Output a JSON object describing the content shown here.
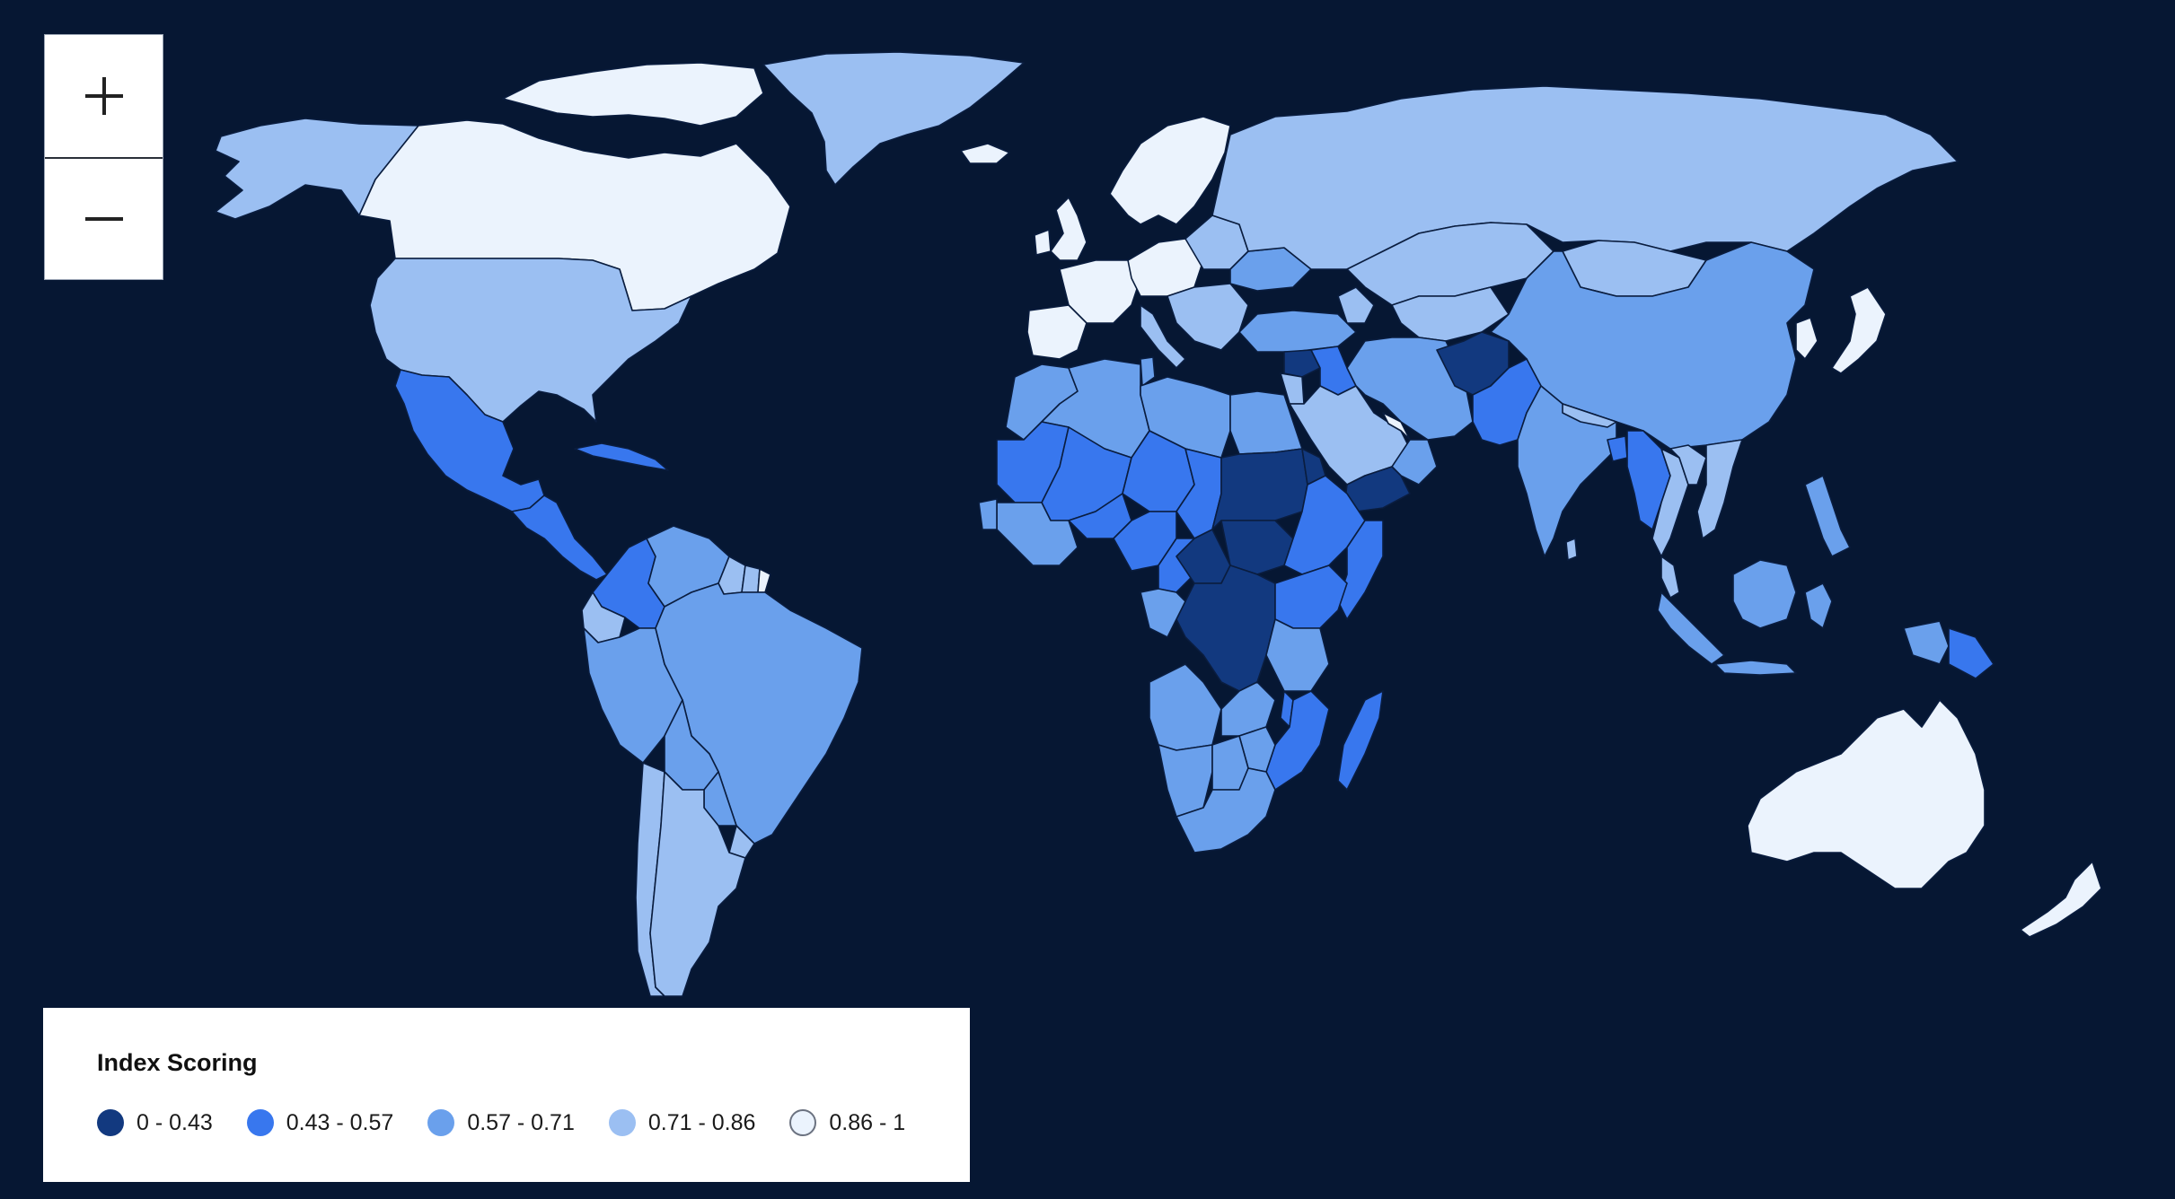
{
  "zoom": {
    "in_icon": "plus-icon",
    "out_icon": "minus-icon"
  },
  "legend": {
    "title": "Index Scoring",
    "items": [
      {
        "label": "0 - 0.43",
        "color": "#12397f"
      },
      {
        "label": "0.43 - 0.57",
        "color": "#3877ee"
      },
      {
        "label": "0.57 - 0.71",
        "color": "#6aa0ec"
      },
      {
        "label": "0.71 - 0.86",
        "color": "#9bbff2"
      },
      {
        "label": "0.86 - 1",
        "color": "#ebf3fd"
      }
    ]
  },
  "colors": {
    "ocean": "#061733",
    "border": "#0a1d3f"
  },
  "regions": [
    {
      "name": "Alaska",
      "tier": 3
    },
    {
      "name": "Canada",
      "tier": 4
    },
    {
      "name": "Greenland",
      "tier": 3
    },
    {
      "name": "Canadian Arctic islands",
      "tier": 4
    },
    {
      "name": "United States",
      "tier": 3
    },
    {
      "name": "Mexico",
      "tier": 1
    },
    {
      "name": "Central America",
      "tier": 1
    },
    {
      "name": "Cuba",
      "tier": 1
    },
    {
      "name": "Colombia",
      "tier": 1
    },
    {
      "name": "Venezuela",
      "tier": 2
    },
    {
      "name": "Guyana",
      "tier": 3
    },
    {
      "name": "Suriname",
      "tier": 3
    },
    {
      "name": "French Guiana",
      "tier": 4
    },
    {
      "name": "Ecuador",
      "tier": 3
    },
    {
      "name": "Peru",
      "tier": 2
    },
    {
      "name": "Brazil",
      "tier": 2
    },
    {
      "name": "Bolivia",
      "tier": 2
    },
    {
      "name": "Paraguay",
      "tier": 2
    },
    {
      "name": "Uruguay",
      "tier": 3
    },
    {
      "name": "Chile",
      "tier": 3
    },
    {
      "name": "Argentina",
      "tier": 3
    },
    {
      "name": "Iceland",
      "tier": 4
    },
    {
      "name": "United Kingdom",
      "tier": 4
    },
    {
      "name": "Ireland",
      "tier": 4
    },
    {
      "name": "Scandinavia",
      "tier": 4
    },
    {
      "name": "Western Europe",
      "tier": 4
    },
    {
      "name": "Iberia",
      "tier": 4
    },
    {
      "name": "Italy",
      "tier": 3
    },
    {
      "name": "Central Europe",
      "tier": 4
    },
    {
      "name": "Eastern Europe",
      "tier": 3
    },
    {
      "name": "Ukraine",
      "tier": 2
    },
    {
      "name": "Balkans",
      "tier": 3
    },
    {
      "name": "Russia",
      "tier": 3
    },
    {
      "name": "Turkey",
      "tier": 2
    },
    {
      "name": "Caucasus",
      "tier": 3
    },
    {
      "name": "Kazakhstan",
      "tier": 3
    },
    {
      "name": "Central Asia",
      "tier": 3
    },
    {
      "name": "Mongolia",
      "tier": 3
    },
    {
      "name": "China",
      "tier": 2
    },
    {
      "name": "Korea",
      "tier": 4
    },
    {
      "name": "Japan",
      "tier": 4
    },
    {
      "name": "Syria",
      "tier": 0
    },
    {
      "name": "Iraq",
      "tier": 1
    },
    {
      "name": "Israel & Jordan",
      "tier": 3
    },
    {
      "name": "Saudi Arabia",
      "tier": 3
    },
    {
      "name": "Gulf states",
      "tier": 4
    },
    {
      "name": "Oman",
      "tier": 2
    },
    {
      "name": "Yemen",
      "tier": 0
    },
    {
      "name": "Iran",
      "tier": 2
    },
    {
      "name": "Afghanistan",
      "tier": 0
    },
    {
      "name": "Pakistan",
      "tier": 1
    },
    {
      "name": "India",
      "tier": 2
    },
    {
      "name": "Sri Lanka",
      "tier": 3
    },
    {
      "name": "Nepal",
      "tier": 3
    },
    {
      "name": "Bangladesh",
      "tier": 1
    },
    {
      "name": "Myanmar",
      "tier": 1
    },
    {
      "name": "Thailand",
      "tier": 3
    },
    {
      "name": "Laos",
      "tier": 3
    },
    {
      "name": "Vietnam",
      "tier": 3
    },
    {
      "name": "Malaysia",
      "tier": 3
    },
    {
      "name": "Sumatra",
      "tier": 2
    },
    {
      "name": "Borneo",
      "tier": 2
    },
    {
      "name": "Java",
      "tier": 2
    },
    {
      "name": "Sulawesi",
      "tier": 2
    },
    {
      "name": "Philippines",
      "tier": 2
    },
    {
      "name": "New Guinea (Indonesia)",
      "tier": 2
    },
    {
      "name": "Papua New Guinea",
      "tier": 1
    },
    {
      "name": "Australia",
      "tier": 4
    },
    {
      "name": "New Zealand",
      "tier": 4
    },
    {
      "name": "Morocco",
      "tier": 2
    },
    {
      "name": "Algeria",
      "tier": 2
    },
    {
      "name": "Tunisia",
      "tier": 2
    },
    {
      "name": "Libya",
      "tier": 2
    },
    {
      "name": "Egypt",
      "tier": 2
    },
    {
      "name": "Mauritania",
      "tier": 1
    },
    {
      "name": "Mali",
      "tier": 1
    },
    {
      "name": "Niger",
      "tier": 1
    },
    {
      "name": "Chad",
      "tier": 1
    },
    {
      "name": "Sudan",
      "tier": 0
    },
    {
      "name": "South Sudan",
      "tier": 0
    },
    {
      "name": "Eritrea",
      "tier": 0
    },
    {
      "name": "Ethiopia",
      "tier": 1
    },
    {
      "name": "Somalia",
      "tier": 1
    },
    {
      "name": "West Africa coast",
      "tier": 2
    },
    {
      "name": "Senegal",
      "tier": 2
    },
    {
      "name": "Burkina Faso",
      "tier": 1
    },
    {
      "name": "Nigeria",
      "tier": 1
    },
    {
      "name": "Cameroon",
      "tier": 1
    },
    {
      "name": "Central African Republic",
      "tier": 0
    },
    {
      "name": "DR Congo",
      "tier": 0
    },
    {
      "name": "Gabon & Congo",
      "tier": 2
    },
    {
      "name": "Uganda & Kenya",
      "tier": 1
    },
    {
      "name": "Tanzania",
      "tier": 2
    },
    {
      "name": "Angola",
      "tier": 2
    },
    {
      "name": "Zambia",
      "tier": 2
    },
    {
      "name": "Malawi",
      "tier": 1
    },
    {
      "name": "Mozambique",
      "tier": 1
    },
    {
      "name": "Zimbabwe",
      "tier": 2
    },
    {
      "name": "Namibia",
      "tier": 2
    },
    {
      "name": "Botswana",
      "tier": 2
    },
    {
      "name": "South Africa",
      "tier": 2
    },
    {
      "name": "Madagascar",
      "tier": 1
    }
  ]
}
